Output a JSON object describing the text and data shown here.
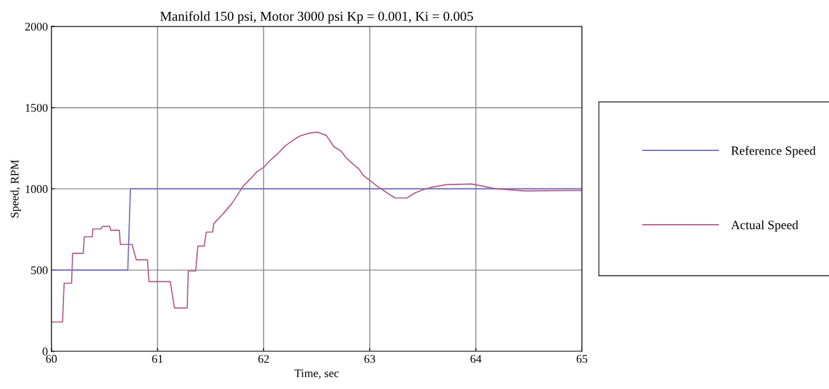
{
  "chart_data": {
    "type": "line",
    "title": "Manifold 150 psi, Motor 3000 psi Kp = 0.001, Ki = 0.005",
    "xlabel": "Time, sec",
    "ylabel": "Speed, RPM",
    "xlim": [
      60,
      65
    ],
    "xticks": [
      60,
      61,
      62,
      63,
      64,
      65
    ],
    "ylim": [
      0,
      2000
    ],
    "yticks": [
      0,
      500,
      1000,
      1500,
      2000
    ],
    "grid": true,
    "legend": "right",
    "line_style": "solid",
    "marker": "none",
    "series": [
      {
        "name": "Reference Speed",
        "color": "#6b6bc4",
        "x": [
          60,
          60.72,
          60.745,
          65
        ],
        "values": [
          500,
          500,
          1000,
          1000
        ]
      },
      {
        "name": "Actual Speed",
        "color": "#b05a85",
        "x": [
          60,
          60.105,
          60.12,
          60.19,
          60.2,
          60.3,
          60.31,
          60.385,
          60.39,
          60.47,
          60.48,
          60.55,
          60.56,
          60.64,
          60.65,
          60.76,
          60.8,
          60.905,
          60.92,
          61.12,
          61.16,
          61.28,
          61.29,
          61.36,
          61.38,
          61.44,
          61.46,
          61.52,
          61.53,
          61.62,
          61.7,
          61.76,
          61.81,
          61.88,
          61.94,
          62.0,
          62.05,
          62.11,
          62.16,
          62.21,
          62.27,
          62.34,
          62.43,
          62.51,
          62.59,
          62.63,
          62.66,
          62.73,
          62.78,
          62.84,
          62.9,
          62.94,
          63.01,
          63.07,
          63.13,
          63.19,
          63.24,
          63.35,
          63.43,
          63.5,
          63.59,
          63.72,
          63.96,
          64.07,
          64.18,
          64.46,
          64.88,
          65
        ],
        "values": [
          180,
          180,
          419,
          419,
          603,
          603,
          705,
          705,
          753,
          753,
          769,
          769,
          745,
          745,
          658,
          658,
          563,
          563,
          429,
          429,
          266,
          266,
          494,
          494,
          648,
          648,
          734,
          734,
          786,
          848,
          909,
          969,
          1019,
          1064,
          1107,
          1132,
          1168,
          1204,
          1235,
          1268,
          1296,
          1325,
          1343,
          1349,
          1329,
          1292,
          1261,
          1232,
          1190,
          1154,
          1121,
          1083,
          1047,
          1016,
          990,
          964,
          944,
          944,
          976,
          994,
          1011,
          1026,
          1030,
          1016,
          1001,
          987,
          990,
          990
        ]
      }
    ]
  }
}
